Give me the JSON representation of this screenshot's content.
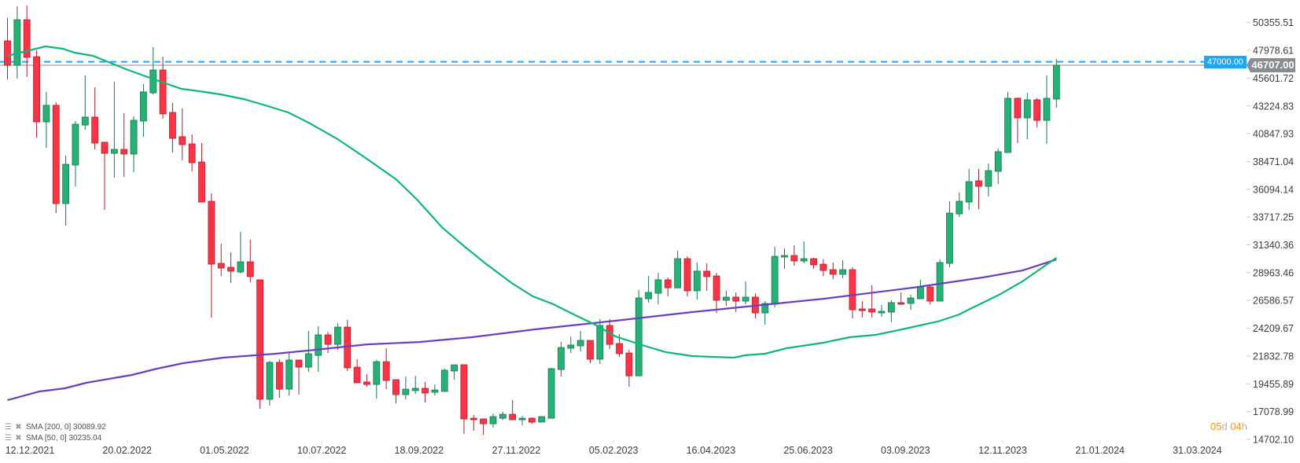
{
  "chart_data": {
    "type": "candlestick",
    "title": "",
    "interval": "weekly",
    "colors": {
      "up": "#26b276",
      "up_border": "#16794e",
      "down": "#ff3346",
      "down_border": "#b01f2d",
      "sma200": "#6a3fc0",
      "sma50": "#0fb67d",
      "alert_line": "#1ea7f0",
      "last_price": "#878d91",
      "countdown": "#f7931a"
    },
    "y_ticks": [
      "50355.51",
      "47978.61",
      "45601.72",
      "43224.83",
      "40847.93",
      "38471.04",
      "36094.14",
      "33717.25",
      "31340.36",
      "28963.46",
      "26586.57",
      "24209.67",
      "21832.78",
      "19455.89",
      "17078.99",
      "14702.10"
    ],
    "ylim": [
      14702.1,
      50355.51
    ],
    "x_tick_labels": [
      "12.12.2021",
      "20.02.2022",
      "01.05.2022",
      "10.07.2022",
      "18.09.2022",
      "27.11.2022",
      "05.02.2023",
      "16.04.2023",
      "25.06.2023",
      "03.09.2023",
      "12.11.2023",
      "21.01.2024",
      "31.03.2024"
    ],
    "candles_ohlc": [
      [
        48790,
        50740,
        45490,
        46700
      ],
      [
        46700,
        51750,
        45560,
        50600
      ],
      [
        50600,
        51810,
        45700,
        47380
      ],
      [
        47440,
        47980,
        40520,
        41860
      ],
      [
        41860,
        44420,
        39640,
        43280
      ],
      [
        43280,
        43540,
        34060,
        34870
      ],
      [
        34870,
        38970,
        32990,
        38230
      ],
      [
        38170,
        41930,
        36350,
        41660
      ],
      [
        41590,
        45830,
        41190,
        42270
      ],
      [
        42270,
        44820,
        39510,
        40050
      ],
      [
        40120,
        40120,
        34330,
        39170
      ],
      [
        39170,
        45290,
        37090,
        39510
      ],
      [
        39510,
        42600,
        37160,
        39110
      ],
      [
        39110,
        42330,
        37560,
        42000
      ],
      [
        41930,
        45090,
        40590,
        44420
      ],
      [
        44350,
        48250,
        44220,
        46300
      ],
      [
        46300,
        47440,
        42130,
        42540
      ],
      [
        42670,
        43480,
        39240,
        40450
      ],
      [
        40590,
        43010,
        38570,
        39910
      ],
      [
        39980,
        40790,
        37630,
        38370
      ],
      [
        38430,
        40050,
        35000,
        35000
      ],
      [
        35070,
        35740,
        25120,
        29690
      ],
      [
        29760,
        31440,
        28680,
        29360
      ],
      [
        29420,
        30700,
        28080,
        29090
      ],
      [
        29020,
        32450,
        28890,
        29890
      ],
      [
        29890,
        31780,
        28150,
        28620
      ],
      [
        28350,
        28350,
        17320,
        18130
      ],
      [
        18130,
        21420,
        17590,
        21290
      ],
      [
        21290,
        21560,
        18260,
        19000
      ],
      [
        19000,
        22230,
        18460,
        21490
      ],
      [
        21490,
        21490,
        18530,
        20880
      ],
      [
        20880,
        23980,
        20480,
        22030
      ],
      [
        21890,
        24380,
        20480,
        23640
      ],
      [
        23640,
        23910,
        22090,
        22830
      ],
      [
        22830,
        24650,
        22360,
        24310
      ],
      [
        24310,
        24920,
        20550,
        20820
      ],
      [
        20880,
        21560,
        19540,
        19540
      ],
      [
        19610,
        20280,
        19200,
        19400
      ],
      [
        19400,
        21490,
        18195,
        21350
      ],
      [
        21350,
        22500,
        19000,
        19740
      ],
      [
        19810,
        19810,
        17790,
        18530
      ],
      [
        18530,
        20080,
        18130,
        19000
      ],
      [
        18870,
        20140,
        18600,
        19070
      ],
      [
        19070,
        19610,
        17860,
        18665
      ],
      [
        18730,
        19400,
        18460,
        18930
      ],
      [
        18800,
        20750,
        18800,
        20620
      ],
      [
        20550,
        21080,
        19810,
        21080
      ],
      [
        21090,
        21090,
        15170,
        16450
      ],
      [
        16510,
        16780,
        15440,
        16380
      ],
      [
        16450,
        16450,
        15100,
        16040
      ],
      [
        16040,
        16920,
        15710,
        16650
      ],
      [
        16510,
        17050,
        16380,
        16850
      ],
      [
        16850,
        18060,
        16380,
        16380
      ],
      [
        16380,
        16710,
        15910,
        16510
      ],
      [
        16510,
        16580,
        16040,
        16180
      ],
      [
        16180,
        16650,
        16180,
        16650
      ],
      [
        16510,
        20820,
        16510,
        20750
      ],
      [
        20680,
        23040,
        20080,
        22560
      ],
      [
        22500,
        23510,
        22090,
        22770
      ],
      [
        22700,
        23980,
        22230,
        23170
      ],
      [
        23170,
        23170,
        21220,
        21560
      ],
      [
        21560,
        24985,
        21150,
        24450
      ],
      [
        24450,
        24990,
        22430,
        22830
      ],
      [
        22900,
        23700,
        21760,
        22030
      ],
      [
        22090,
        22360,
        19200,
        20140
      ],
      [
        20140,
        27470,
        20080,
        26800
      ],
      [
        26730,
        28680,
        26400,
        27270
      ],
      [
        27200,
        28950,
        26260,
        28350
      ],
      [
        28350,
        28550,
        26940,
        27670
      ],
      [
        27670,
        30830,
        27610,
        30160
      ],
      [
        30160,
        30360,
        26940,
        27410
      ],
      [
        27410,
        29830,
        26670,
        29090
      ],
      [
        29090,
        29760,
        27410,
        28620
      ],
      [
        28680,
        28950,
        25520,
        26600
      ],
      [
        26600,
        27410,
        26130,
        26870
      ],
      [
        26870,
        27270,
        25590,
        26530
      ],
      [
        26530,
        28210,
        26260,
        26870
      ],
      [
        26870,
        27200,
        25050,
        25520
      ],
      [
        25520,
        26530,
        24510,
        26330
      ],
      [
        26260,
        31170,
        25995,
        30360
      ],
      [
        30300,
        31040,
        29290,
        30430
      ],
      [
        30430,
        31310,
        29560,
        29960
      ],
      [
        29960,
        31640,
        29760,
        30160
      ],
      [
        30160,
        30230,
        29290,
        29630
      ],
      [
        29690,
        30100,
        28680,
        29150
      ],
      [
        29220,
        29830,
        28410,
        28820
      ],
      [
        28820,
        30030,
        28480,
        29220
      ],
      [
        29220,
        29420,
        25050,
        25790
      ],
      [
        25860,
        26530,
        25120,
        25720
      ],
      [
        25860,
        27880,
        25120,
        25590
      ],
      [
        25520,
        26190,
        25190,
        25660
      ],
      [
        25590,
        26600,
        24720,
        26400
      ],
      [
        26400,
        27270,
        26200,
        26260
      ],
      [
        26330,
        27070,
        25790,
        26800
      ],
      [
        26730,
        28350,
        26730,
        27740
      ],
      [
        27740,
        27880,
        26260,
        26530
      ],
      [
        26530,
        30100,
        26530,
        29830
      ],
      [
        29760,
        35070,
        29420,
        34060
      ],
      [
        33990,
        35810,
        33730,
        35070
      ],
      [
        35000,
        37830,
        34330,
        36750
      ],
      [
        36820,
        37830,
        34400,
        36350
      ],
      [
        36350,
        38300,
        35475,
        37690
      ],
      [
        37630,
        39576,
        36550,
        39310
      ],
      [
        39240,
        44420,
        39240,
        43880
      ],
      [
        43880,
        43950,
        40050,
        42200
      ],
      [
        42200,
        44350,
        40380,
        43750
      ],
      [
        43750,
        43880,
        41390,
        41990
      ],
      [
        41990,
        45830,
        39980,
        43880
      ],
      [
        43810,
        47240,
        43070,
        46707
      ]
    ],
    "sma50_points": [
      [
        0,
        47510
      ],
      [
        3.9,
        48318
      ],
      [
        5.7,
        48116
      ],
      [
        6.9,
        47780
      ],
      [
        8.8,
        47510
      ],
      [
        10.2,
        47040
      ],
      [
        12.2,
        46368
      ],
      [
        14.2,
        45763
      ],
      [
        15.8,
        45292
      ],
      [
        17.9,
        44687
      ],
      [
        20.3,
        44418
      ],
      [
        21.9,
        44216
      ],
      [
        24.3,
        43813
      ],
      [
        26,
        43410
      ],
      [
        28.9,
        42670
      ],
      [
        31,
        41796
      ],
      [
        34,
        40384
      ],
      [
        37,
        38703
      ],
      [
        40,
        36955
      ],
      [
        42.1,
        35274
      ],
      [
        44.8,
        32785
      ],
      [
        47,
        31239
      ],
      [
        49.2,
        29760
      ],
      [
        51.9,
        28078
      ],
      [
        54.1,
        26936
      ],
      [
        56.2,
        26263
      ],
      [
        58.3,
        25389
      ],
      [
        60.5,
        24515
      ],
      [
        62.6,
        23506
      ],
      [
        65.6,
        22700
      ],
      [
        67.8,
        22162
      ],
      [
        70.5,
        21825
      ],
      [
        74.8,
        21691
      ],
      [
        75.9,
        21893
      ],
      [
        78,
        22027
      ],
      [
        80.2,
        22498
      ],
      [
        84,
        22970
      ],
      [
        86.7,
        23440
      ],
      [
        89.4,
        23640
      ],
      [
        92.1,
        24110
      ],
      [
        95.8,
        24785
      ],
      [
        98,
        25389
      ],
      [
        99.1,
        25860
      ],
      [
        102.1,
        27070
      ],
      [
        104.5,
        28213
      ],
      [
        108,
        30235
      ]
    ],
    "sma200_points": [
      [
        0,
        18060
      ],
      [
        3.3,
        18800
      ],
      [
        5.9,
        19070
      ],
      [
        8.1,
        19540
      ],
      [
        12.8,
        20210
      ],
      [
        15.4,
        20750
      ],
      [
        18.1,
        21220
      ],
      [
        22.2,
        21690
      ],
      [
        27.6,
        22030
      ],
      [
        31.6,
        22360
      ],
      [
        37,
        22830
      ],
      [
        42.4,
        23030
      ],
      [
        47.8,
        23440
      ],
      [
        54.3,
        24110
      ],
      [
        57.3,
        24380
      ],
      [
        62.6,
        24850
      ],
      [
        70.5,
        25590
      ],
      [
        76.9,
        26130
      ],
      [
        84,
        26730
      ],
      [
        93.2,
        27675
      ],
      [
        100.4,
        28550
      ],
      [
        104.5,
        29150
      ],
      [
        108,
        30090
      ]
    ],
    "alert_level": 47000.0,
    "last_price": 46707.0
  },
  "price_tags": {
    "alert": "47000.00",
    "last": "46707.00"
  },
  "legend": [
    {
      "label": "SMA [200,  0] 30089.92",
      "icons": [
        "settings-icon",
        "remove-icon"
      ]
    },
    {
      "label": "SMA [50,  0] 30235.04",
      "icons": [
        "settings-icon",
        "remove-icon"
      ]
    }
  ],
  "countdown": {
    "days": "05",
    "days_unit": "d",
    "hours": "04",
    "hours_unit": "h"
  }
}
